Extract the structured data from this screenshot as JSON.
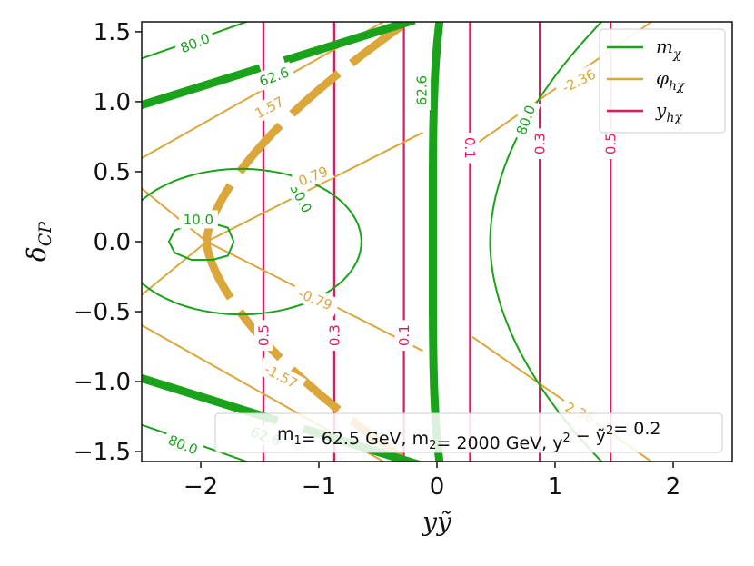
{
  "chart_data": {
    "type": "contour",
    "xlabel": "yỹ",
    "ylabel": "δ_CP",
    "xlim": [
      -2.5,
      2.5
    ],
    "ylim": [
      -1.5708,
      1.5708
    ],
    "x_ticks": [
      "−2",
      "−1",
      "0",
      "1",
      "2"
    ],
    "y_ticks": [
      "−1.5",
      "−1.0",
      "−0.5",
      "0.0",
      "0.5",
      "1.0",
      "1.5"
    ],
    "grid": false,
    "legend_position": "top-right",
    "legend": [
      {
        "label": "m_χ",
        "color": "#1aa31a"
      },
      {
        "label": "φ_hχ",
        "color": "#dba63a"
      },
      {
        "label": "y_hχ",
        "color": "#e8175d"
      }
    ],
    "annotation": "m₁= 62.5 GeV, m₂= 2000 GeV, y² − ỹ²= 0.2",
    "series": [
      {
        "name": "m_χ",
        "color": "#1aa31a",
        "levels": [
          "10.0",
          "30.0",
          "62.6",
          "80.0"
        ]
      },
      {
        "name": "φ_hχ",
        "color": "#dba63a",
        "levels": [
          "-2.36",
          "-1.57",
          "-0.79",
          "0.79",
          "1.57",
          "2.36"
        ]
      },
      {
        "name": "y_hχ",
        "color": "#e8175d",
        "levels": [
          "0.1",
          "0.3",
          "0.5"
        ],
        "x_positions": [
          -0.28,
          -0.87,
          -1.47,
          0.28,
          0.87,
          1.47
        ]
      }
    ],
    "contour_labels": [
      {
        "text": "80.0",
        "series": "m_χ",
        "x": -2.05,
        "y": 1.42,
        "rot": -22
      },
      {
        "text": "62.6",
        "series": "m_χ",
        "x": -1.38,
        "y": 1.18,
        "rot": -20
      },
      {
        "text": "62.6",
        "series": "m_χ",
        "x": -0.13,
        "y": 1.08,
        "rot": -90
      },
      {
        "text": "30.0",
        "series": "m_χ",
        "x": -1.15,
        "y": 0.31,
        "rot": 62
      },
      {
        "text": "10.0",
        "series": "m_χ",
        "x": -2.02,
        "y": 0.16,
        "rot": 0
      },
      {
        "text": "80.0",
        "series": "m_χ",
        "x": 0.75,
        "y": 0.87,
        "rot": -70
      },
      {
        "text": "62.6",
        "series": "m_χ",
        "x": -1.45,
        "y": -1.39,
        "rot": 20
      },
      {
        "text": "80.0",
        "series": "m_χ",
        "x": -2.15,
        "y": -1.45,
        "rot": 22
      },
      {
        "text": "1.57",
        "series": "φ_hχ",
        "x": -1.42,
        "y": 0.96,
        "rot": -28
      },
      {
        "text": "0.79",
        "series": "φ_hχ",
        "x": -1.05,
        "y": 0.47,
        "rot": -22
      },
      {
        "text": "-2.36",
        "series": "φ_hχ",
        "x": 1.2,
        "y": 1.15,
        "rot": -26
      },
      {
        "text": "-0.79",
        "series": "φ_hχ",
        "x": -1.03,
        "y": -0.41,
        "rot": 22
      },
      {
        "text": "-1.57",
        "series": "φ_hχ",
        "x": -1.32,
        "y": -0.96,
        "rot": 28
      },
      {
        "text": "2.36",
        "series": "φ_hχ",
        "x": 1.21,
        "y": -1.22,
        "rot": 26
      },
      {
        "text": "0.1",
        "series": "y_hχ",
        "x": 0.28,
        "y": 0.67,
        "rot": 90
      },
      {
        "text": "0.3",
        "series": "y_hχ",
        "x": 0.87,
        "y": 0.7,
        "rot": -90
      },
      {
        "text": "0.5",
        "series": "y_hχ",
        "x": 1.47,
        "y": 0.7,
        "rot": -90
      },
      {
        "text": "0.5",
        "series": "y_hχ",
        "x": -1.47,
        "y": -0.67,
        "rot": -90
      },
      {
        "text": "0.3",
        "series": "y_hχ",
        "x": -0.87,
        "y": -0.67,
        "rot": -90
      },
      {
        "text": "0.1",
        "series": "y_hχ",
        "x": -0.28,
        "y": -0.67,
        "rot": -90
      }
    ]
  }
}
